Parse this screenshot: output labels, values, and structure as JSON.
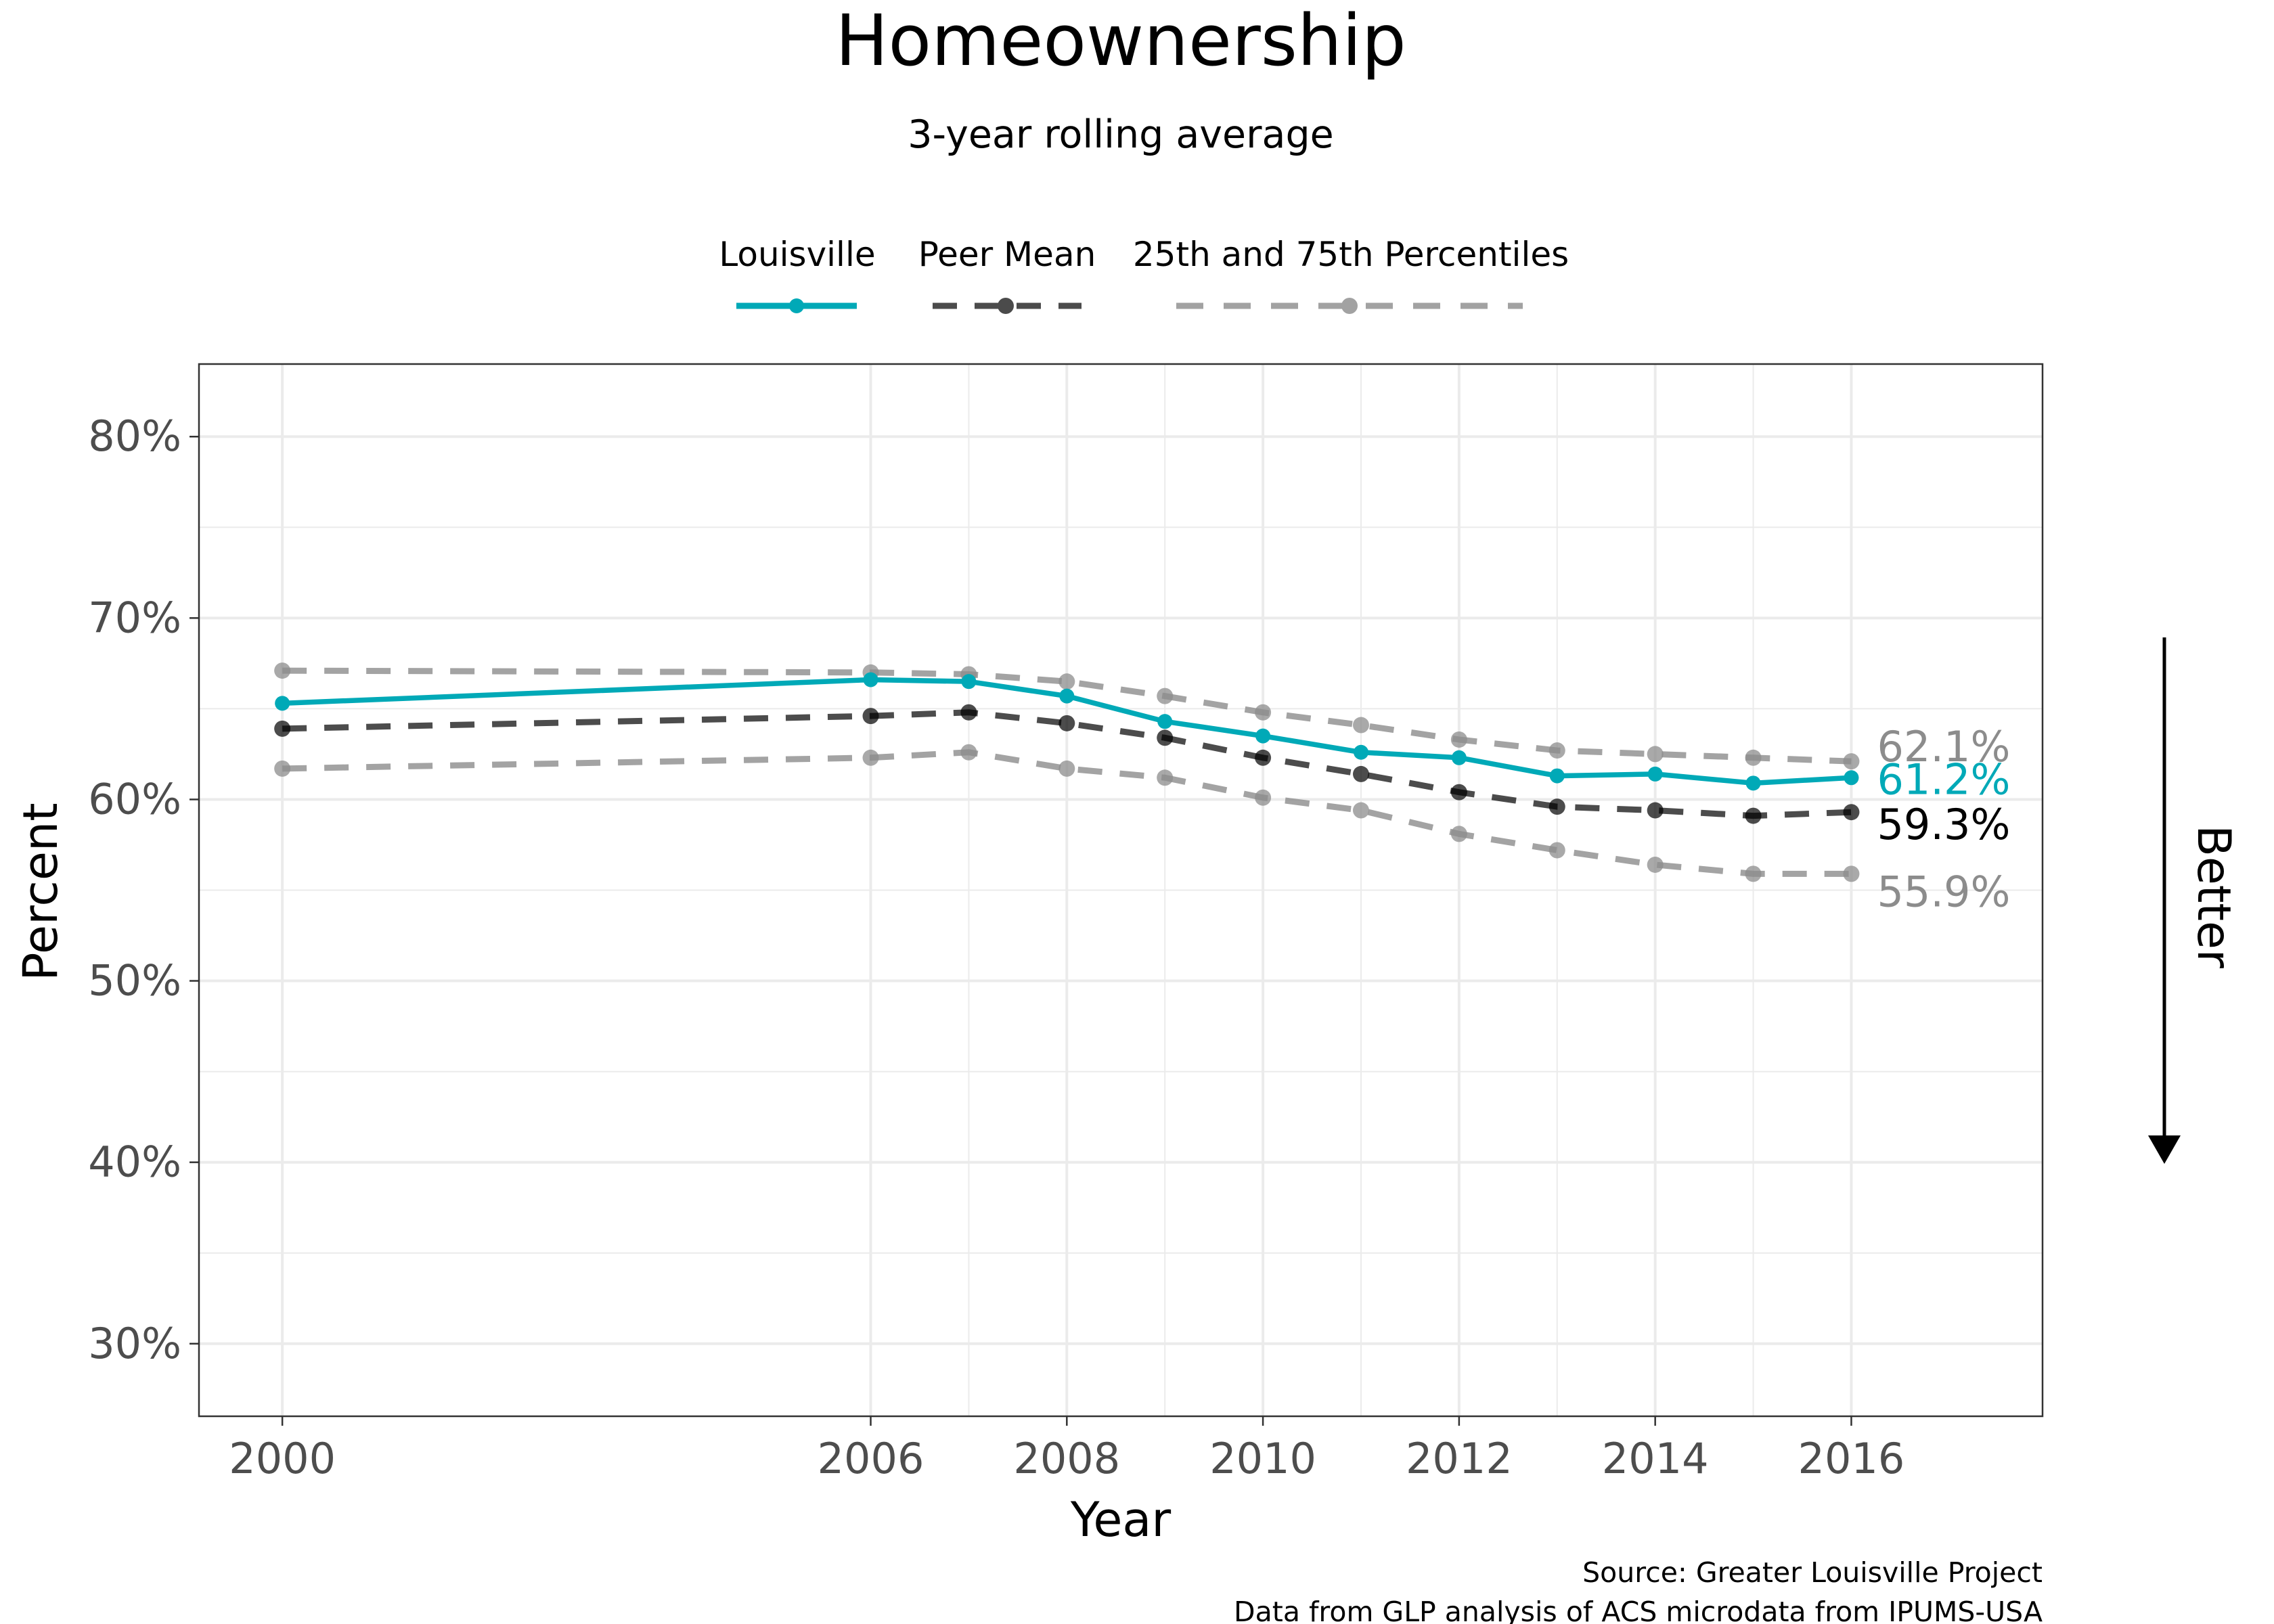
{
  "chart_data": {
    "type": "line",
    "title": "Homeownership",
    "subtitle": "3-year rolling average",
    "xlabel": "Year",
    "ylabel": "Percent",
    "x": [
      2000,
      2006,
      2007,
      2008,
      2009,
      2010,
      2011,
      2012,
      2013,
      2014,
      2015,
      2016
    ],
    "xticks": [
      2000,
      2006,
      2008,
      2010,
      2012,
      2014,
      2016
    ],
    "xlim": [
      1999.15,
      2017.95
    ],
    "ylim": [
      26,
      84
    ],
    "yticks": [
      {
        "value": 30,
        "label": "30%"
      },
      {
        "value": 40,
        "label": "40%"
      },
      {
        "value": 50,
        "label": "50%"
      },
      {
        "value": 60,
        "label": "60%"
      },
      {
        "value": 70,
        "label": "70%"
      },
      {
        "value": 80,
        "label": "80%"
      }
    ],
    "grid": true,
    "legend_position": "top",
    "legend_labels": {
      "louisville": "Louisville",
      "peer_mean": "Peer Mean",
      "percentiles": "25th and 75th Percentiles"
    },
    "series": [
      {
        "key": "p75",
        "values": [
          67.1,
          67.0,
          66.9,
          66.5,
          65.7,
          64.8,
          64.1,
          63.3,
          62.7,
          62.5,
          62.3,
          62.1
        ],
        "color": "#8c8c8c",
        "style": "dashed",
        "end_label": "62.1%"
      },
      {
        "key": "p25",
        "values": [
          61.7,
          62.3,
          62.6,
          61.7,
          61.2,
          60.1,
          59.4,
          58.1,
          57.2,
          56.4,
          55.9,
          55.9
        ],
        "color": "#8c8c8c",
        "style": "dashed",
        "end_label": "55.9%"
      },
      {
        "key": "mean",
        "values": [
          63.9,
          64.6,
          64.8,
          64.2,
          63.4,
          62.3,
          61.4,
          60.4,
          59.6,
          59.4,
          59.1,
          59.3
        ],
        "color": "#000000",
        "style": "dashed",
        "end_label": "59.3%"
      },
      {
        "key": "louisville",
        "values": [
          65.3,
          66.6,
          66.5,
          65.7,
          64.3,
          63.5,
          62.6,
          62.3,
          61.3,
          61.4,
          60.9,
          61.2
        ],
        "color": "#00a9b7",
        "style": "solid",
        "end_label": "61.2%"
      }
    ],
    "better_direction": "down",
    "better_label": "Better",
    "caption_lines": [
      "Source: Greater Louisville Project",
      "Data from GLP analysis of ACS microdata from IPUMS-USA"
    ]
  },
  "colors": {
    "louisville": "#00a9b7",
    "peer_mean": "#000000",
    "percentiles": "#8c8c8c",
    "grid": "#ebebeb",
    "panel_border": "#333333",
    "tick_text": "#4d4d4d"
  }
}
